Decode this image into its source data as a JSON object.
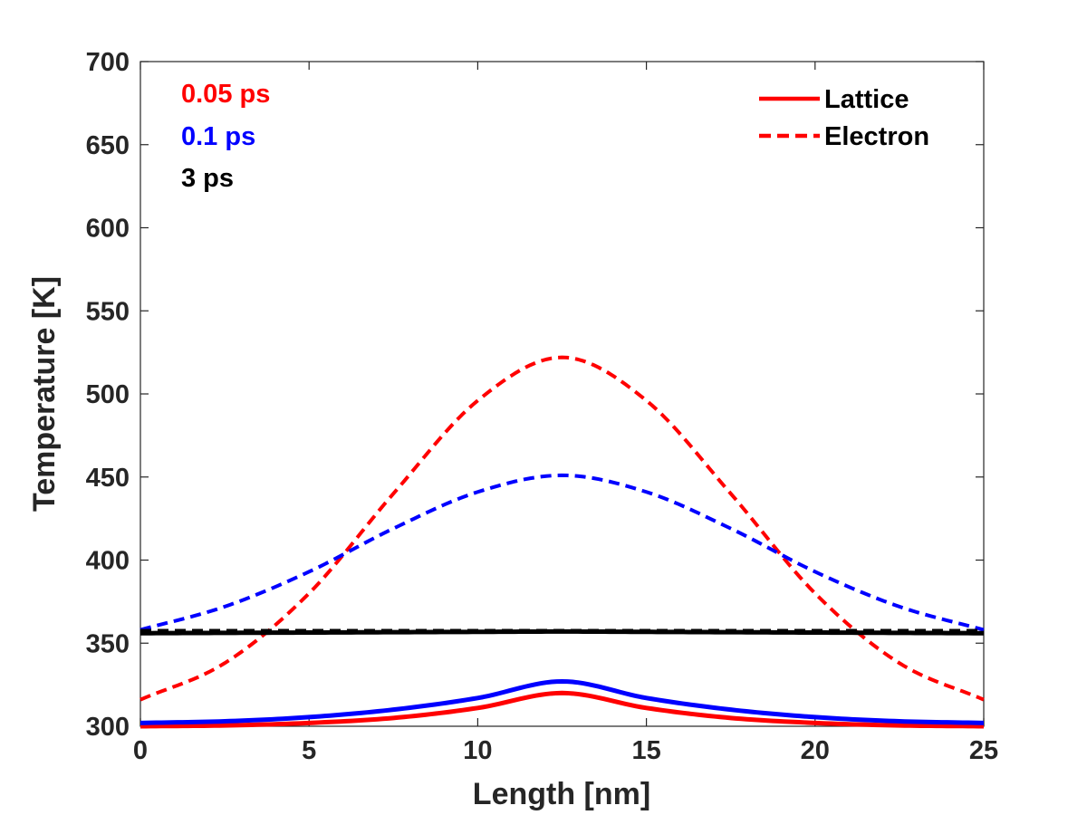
{
  "chart_data": {
    "type": "line",
    "title": "",
    "xlabel": "Length [nm]",
    "ylabel": "Temperature [K]",
    "xlim": [
      0,
      25
    ],
    "ylim": [
      300,
      700
    ],
    "xticks": [
      0,
      5,
      10,
      15,
      20,
      25
    ],
    "yticks": [
      300,
      350,
      400,
      450,
      500,
      550,
      600,
      650,
      700
    ],
    "grid": false,
    "legend": {
      "placement": "top-right",
      "entries": [
        {
          "label": "Lattice",
          "style": "solid",
          "color": "#ff0000"
        },
        {
          "label": "Electron",
          "style": "dashed",
          "color": "#ff0000"
        }
      ]
    },
    "annotations": [
      {
        "text": "0.05 ps",
        "color": "#ff0000"
      },
      {
        "text": "0.1 ps",
        "color": "#0000ff"
      },
      {
        "text": "3 ps",
        "color": "#000000"
      }
    ],
    "x": [
      0,
      2.5,
      5,
      7.5,
      10,
      12.5,
      15,
      17.5,
      20,
      22.5,
      25
    ],
    "series": [
      {
        "time": "0.05 ps",
        "kind": "Electron",
        "color": "#ff0000",
        "style": "dashed",
        "values": [
          316,
          338,
          380,
          440,
          496,
          522,
          496,
          440,
          380,
          338,
          316
        ]
      },
      {
        "time": "0.05 ps",
        "kind": "Lattice",
        "color": "#ff0000",
        "style": "solid",
        "values": [
          300,
          300.5,
          302,
          305,
          311,
          320,
          311,
          305,
          302,
          300.5,
          300
        ]
      },
      {
        "time": "0.1 ps",
        "kind": "Electron",
        "color": "#0000ff",
        "style": "dashed",
        "values": [
          358,
          372,
          393,
          419,
          441,
          451,
          441,
          419,
          393,
          372,
          358
        ]
      },
      {
        "time": "0.1 ps",
        "kind": "Lattice",
        "color": "#0000ff",
        "style": "solid",
        "values": [
          302,
          303,
          305.5,
          310,
          317,
          327,
          317,
          310,
          305.5,
          303,
          302
        ]
      },
      {
        "time": "3 ps",
        "kind": "Electron",
        "color": "#000000",
        "style": "dashed",
        "values": [
          357.5,
          357.5,
          357.5,
          357.5,
          357.5,
          357.5,
          357.5,
          357.5,
          357.5,
          357.5,
          357.5
        ]
      },
      {
        "time": "3 ps",
        "kind": "Lattice",
        "color": "#000000",
        "style": "solid",
        "values": [
          356,
          356.2,
          356.4,
          356.6,
          356.8,
          357,
          356.8,
          356.6,
          356.4,
          356.2,
          356
        ]
      }
    ]
  }
}
